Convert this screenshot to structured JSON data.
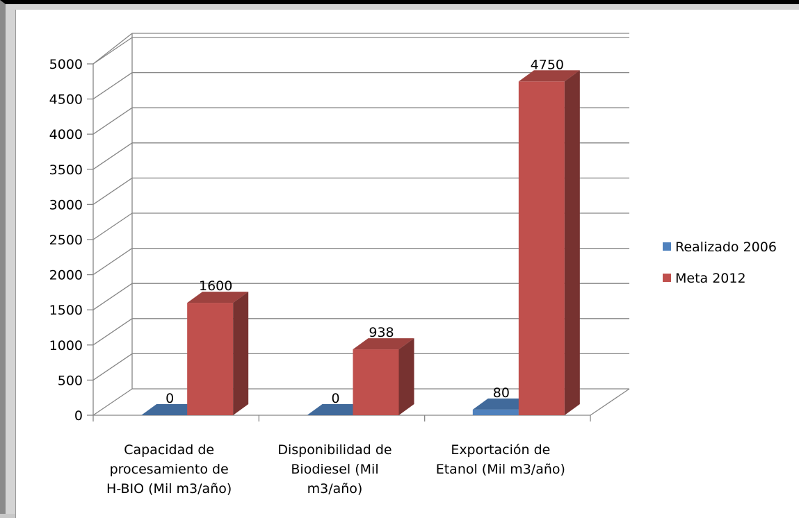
{
  "chart_data": {
    "type": "bar",
    "style": "3d-clustered-column",
    "categories": [
      [
        "Capacidad de",
        "procesamiento de",
        "H-BIO (Mil m3/año)"
      ],
      [
        "Disponibilidad de",
        "Biodiesel (Mil",
        "m3/año)"
      ],
      [
        "Exportación de",
        "Etanol (Mil m3/año)"
      ]
    ],
    "series": [
      {
        "name": "Realizado 2006",
        "color": "#4f81bd",
        "values": [
          0,
          0,
          80
        ],
        "labels": [
          "0",
          "0",
          "80"
        ]
      },
      {
        "name": "Meta 2012",
        "color": "#c0504d",
        "values": [
          1600,
          938,
          4750
        ],
        "labels": [
          "1600",
          "938",
          "4750"
        ]
      }
    ],
    "yticks": [
      "0",
      "500",
      "1000",
      "1500",
      "2000",
      "2500",
      "3000",
      "3500",
      "4000",
      "4500",
      "5000"
    ],
    "ylim": [
      0,
      5000
    ],
    "grid": true,
    "legend_position": "right"
  }
}
